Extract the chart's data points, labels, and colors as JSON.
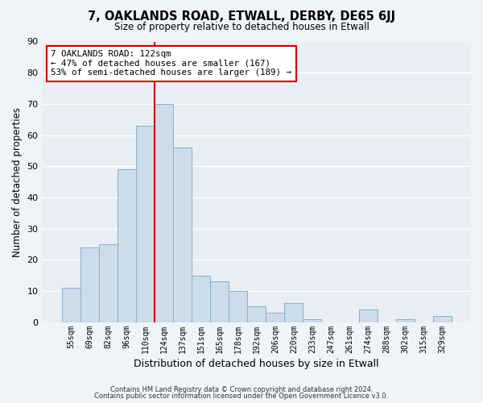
{
  "title": "7, OAKLANDS ROAD, ETWALL, DERBY, DE65 6JJ",
  "subtitle": "Size of property relative to detached houses in Etwall",
  "xlabel": "Distribution of detached houses by size in Etwall",
  "ylabel": "Number of detached properties",
  "bar_color": "#ccdce8",
  "bar_edge_color": "#8ab0cc",
  "background_color": "#f0f4f8",
  "plot_bg_color": "#e8eef4",
  "grid_color": "#ffffff",
  "annotation_box_color": "#ffffff",
  "annotation_box_edge": "#cc0000",
  "vline_color": "#cc0000",
  "categories": [
    "55sqm",
    "69sqm",
    "82sqm",
    "96sqm",
    "110sqm",
    "124sqm",
    "137sqm",
    "151sqm",
    "165sqm",
    "178sqm",
    "192sqm",
    "206sqm",
    "220sqm",
    "233sqm",
    "247sqm",
    "261sqm",
    "274sqm",
    "288sqm",
    "302sqm",
    "315sqm",
    "329sqm"
  ],
  "values": [
    11,
    24,
    25,
    49,
    63,
    70,
    56,
    15,
    13,
    10,
    5,
    3,
    6,
    1,
    0,
    0,
    4,
    0,
    1,
    0,
    2
  ],
  "ylim": [
    0,
    90
  ],
  "yticks": [
    0,
    10,
    20,
    30,
    40,
    50,
    60,
    70,
    80,
    90
  ],
  "annotation_line1": "7 OAKLANDS ROAD: 122sqm",
  "annotation_line2": "← 47% of detached houses are smaller (167)",
  "annotation_line3": "53% of semi-detached houses are larger (189) →",
  "footnote1": "Contains HM Land Registry data © Crown copyright and database right 2024.",
  "footnote2": "Contains public sector information licensed under the Open Government Licence v3.0."
}
